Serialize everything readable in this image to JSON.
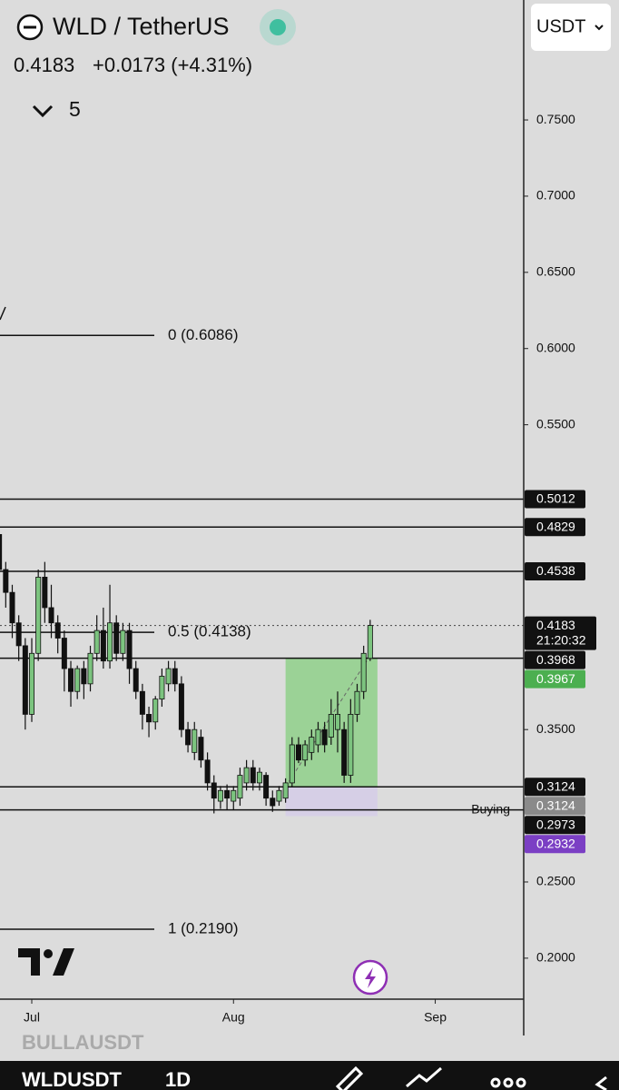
{
  "header": {
    "symbol": "WLD / TetherUS",
    "price": "0.4183",
    "change": "+0.0173 (+4.31%)",
    "indicators": "5",
    "currency": "USDT"
  },
  "chart_data": {
    "type": "candlestick",
    "categories": [
      null,
      null,
      null,
      null,
      null,
      "Jul",
      null,
      null,
      null,
      null,
      null,
      null,
      null,
      null,
      null,
      null,
      null,
      null,
      null,
      null,
      null,
      null,
      null,
      null,
      null,
      null,
      null,
      null,
      null,
      null,
      null,
      null,
      null,
      null,
      null,
      null,
      "Aug",
      null,
      null,
      null,
      null,
      null,
      null,
      null,
      null,
      null,
      null,
      null,
      null,
      null,
      null,
      null,
      null,
      null,
      null,
      null,
      null,
      null,
      null,
      null,
      null,
      null,
      null,
      null,
      null,
      null,
      null,
      "Sep"
    ],
    "open": [
      0.478,
      0.455,
      0.44,
      0.42,
      0.405,
      0.36,
      0.4,
      0.45,
      0.43,
      0.42,
      0.41,
      0.39,
      0.375,
      0.39,
      0.38,
      0.4,
      0.415,
      0.395,
      0.42,
      0.4,
      0.415,
      0.39,
      0.375,
      0.36,
      0.355,
      0.37,
      0.38,
      0.39,
      0.38,
      0.35,
      0.335,
      0.345,
      0.33,
      0.315,
      0.303,
      0.31,
      0.303,
      0.305,
      0.315,
      0.325,
      0.315,
      0.32,
      0.305,
      0.303,
      0.305,
      0.315,
      0.34,
      0.33,
      0.335,
      0.34,
      0.35,
      0.345,
      0.35,
      0.35,
      0.32,
      0.36,
      0.375,
      0.3967,
      null,
      null,
      null,
      null,
      null,
      null,
      null,
      null,
      null,
      null
    ],
    "high": [
      0.49,
      0.46,
      0.445,
      0.425,
      0.41,
      0.41,
      0.455,
      0.46,
      0.445,
      0.425,
      0.415,
      0.395,
      0.392,
      0.395,
      0.405,
      0.425,
      0.43,
      0.445,
      0.425,
      0.42,
      0.42,
      0.395,
      0.38,
      0.365,
      0.372,
      0.39,
      0.395,
      0.395,
      0.385,
      0.355,
      0.355,
      0.35,
      0.335,
      0.32,
      0.313,
      0.314,
      0.313,
      0.325,
      0.33,
      0.33,
      0.325,
      0.322,
      0.31,
      0.313,
      0.318,
      0.345,
      0.345,
      0.343,
      0.35,
      0.355,
      0.355,
      0.37,
      0.375,
      0.355,
      0.37,
      0.38,
      0.405,
      0.422,
      null,
      null,
      null,
      null,
      null,
      null,
      null,
      null,
      null,
      null
    ],
    "low": [
      0.45,
      0.43,
      0.41,
      0.395,
      0.35,
      0.355,
      0.395,
      0.42,
      0.41,
      0.4,
      0.375,
      0.365,
      0.37,
      0.37,
      0.375,
      0.395,
      0.39,
      0.39,
      0.395,
      0.395,
      0.38,
      0.37,
      0.35,
      0.345,
      0.35,
      0.365,
      0.375,
      0.375,
      0.345,
      0.335,
      0.33,
      0.325,
      0.31,
      0.295,
      0.298,
      0.297,
      0.297,
      0.3,
      0.31,
      0.31,
      0.31,
      0.3,
      0.296,
      0.3,
      0.302,
      0.312,
      0.328,
      0.326,
      0.33,
      0.335,
      0.335,
      0.34,
      0.335,
      0.315,
      0.315,
      0.355,
      0.37,
      0.395,
      null,
      null,
      null,
      null,
      null,
      null,
      null,
      null,
      null,
      null
    ],
    "close": [
      0.455,
      0.44,
      0.42,
      0.405,
      0.36,
      0.4,
      0.45,
      0.43,
      0.42,
      0.41,
      0.39,
      0.375,
      0.39,
      0.38,
      0.4,
      0.415,
      0.395,
      0.42,
      0.4,
      0.415,
      0.39,
      0.375,
      0.36,
      0.355,
      0.37,
      0.385,
      0.39,
      0.38,
      0.35,
      0.34,
      0.35,
      0.33,
      0.315,
      0.305,
      0.31,
      0.305,
      0.31,
      0.32,
      0.325,
      0.315,
      0.322,
      0.305,
      0.3,
      0.31,
      0.315,
      0.34,
      0.33,
      0.34,
      0.345,
      0.35,
      0.34,
      0.36,
      0.36,
      0.32,
      0.36,
      0.375,
      0.4,
      0.4183,
      null,
      null,
      null,
      null,
      null,
      null,
      null,
      null,
      null,
      null
    ],
    "up_color": "#7cc47f",
    "down_color": "#111111",
    "ylim": [
      0.1731,
      0.8287
    ],
    "yticks": [
      {
        "value": 0.75,
        "label": "0.7500"
      },
      {
        "value": 0.7,
        "label": "0.7000"
      },
      {
        "value": 0.65,
        "label": "0.6500"
      },
      {
        "value": 0.6,
        "label": "0.6000"
      },
      {
        "value": 0.55,
        "label": "0.5500"
      },
      {
        "value": 0.35,
        "label": "0.3500"
      },
      {
        "value": 0.25,
        "label": "0.2500"
      },
      {
        "value": 0.2,
        "label": "0.2000"
      }
    ],
    "levels": [
      {
        "value": 0.5012,
        "label": "0.5012"
      },
      {
        "value": 0.4829,
        "label": "0.4829"
      },
      {
        "value": 0.4538,
        "label": "0.4538"
      },
      {
        "value": 0.3968,
        "label": "0.3968"
      },
      {
        "value": 0.3124,
        "label": "0.3124"
      },
      {
        "value": 0.2973,
        "label": "0.2973",
        "text": "Buying"
      }
    ],
    "fib_levels": [
      {
        "value": 0.6086,
        "label": "0 (0.6086)"
      },
      {
        "value": 0.4138,
        "label": "0.5 (0.4138)"
      },
      {
        "value": 0.219,
        "label": "1 (0.2190)"
      }
    ],
    "current": {
      "value": 0.4183,
      "label": "0.4183",
      "countdown": "21:20:32"
    },
    "position": {
      "target": {
        "value": 0.3967,
        "label": "0.3967",
        "color": "#4caf50"
      },
      "entry": {
        "value": 0.3124,
        "label": "0.3124",
        "color": "#8a8a8a"
      },
      "stop": {
        "value": 0.2932,
        "label": "0.2932",
        "color": "#7b3fc4"
      }
    }
  },
  "footer": {
    "faded_symbol": "BULLAUSDT",
    "symbol": "WLDUSDT",
    "interval": "1D"
  }
}
